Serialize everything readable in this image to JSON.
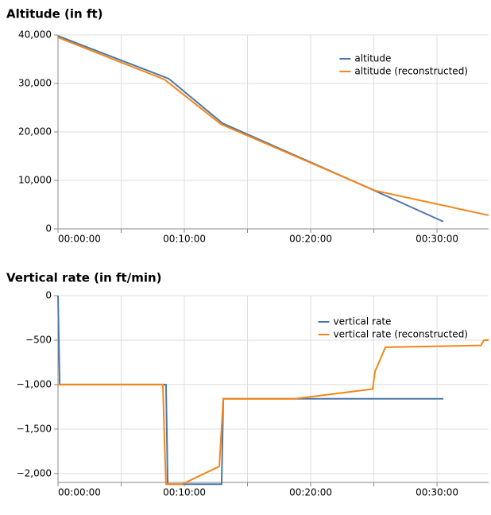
{
  "chart_data": [
    {
      "type": "line",
      "title": "Altitude (in ft)",
      "xlim": [
        0,
        2045
      ],
      "ylim": [
        0,
        40000
      ],
      "xticks": [
        {
          "value": 0,
          "label": "00:00:00"
        },
        {
          "value": 600,
          "label": "00:10:00"
        },
        {
          "value": 1200,
          "label": "00:20:00"
        },
        {
          "value": 1800,
          "label": "00:30:00"
        }
      ],
      "x_minor_ticks": [
        300,
        900,
        1500
      ],
      "yticks": [
        0,
        {
          "value": 10000,
          "label": "10,000"
        },
        {
          "value": 20000,
          "label": "20,000"
        },
        {
          "value": 30000,
          "label": "30,000"
        },
        {
          "value": 40000,
          "label": "40,000"
        }
      ],
      "grid": true,
      "legend": "top-right",
      "series": [
        {
          "name": "altitude",
          "color": "#4c78a8",
          "x": [
            0,
            525,
            781,
            1498,
            1830
          ],
          "values": [
            39800,
            31000,
            21800,
            8000,
            1500
          ]
        },
        {
          "name": "altitude (reconstructed)",
          "color": "#f58518",
          "x": [
            0,
            506,
            774,
            1506,
            2045
          ],
          "values": [
            39500,
            30800,
            21600,
            7900,
            2800
          ]
        }
      ]
    },
    {
      "type": "line",
      "title": "Vertical rate (in ft/min)",
      "xlim": [
        0,
        2045
      ],
      "ylim": [
        -2100,
        0
      ],
      "xticks": [
        {
          "value": 0,
          "label": "00:00:00"
        },
        {
          "value": 600,
          "label": "00:10:00"
        },
        {
          "value": 1200,
          "label": "00:20:00"
        },
        {
          "value": 1800,
          "label": "00:30:00"
        }
      ],
      "x_minor_ticks": [
        300,
        900,
        1500
      ],
      "yticks": [
        {
          "value": -2000,
          "label": "−2,000"
        },
        {
          "value": -1500,
          "label": "−1,500"
        },
        {
          "value": -1000,
          "label": "−1,000"
        },
        {
          "value": -500,
          "label": "−500"
        },
        0
      ],
      "grid": true,
      "legend": "top-right",
      "series": [
        {
          "name": "vertical rate",
          "color": "#4c78a8",
          "x": [
            0,
            8,
            513,
            521,
            777,
            785,
            1830
          ],
          "values": [
            0,
            -1000,
            -1000,
            -2120,
            -2120,
            -1160,
            -1160
          ]
        },
        {
          "name": "vertical rate (reconstructed)",
          "color": "#f58518",
          "x": [
            0,
            498,
            506,
            513,
            589,
            766,
            785,
            1121,
            1494,
            1506,
            1555,
            2008,
            2023,
            2045
          ],
          "values": [
            -1000,
            -1000,
            -1650,
            -2120,
            -2120,
            -1920,
            -1160,
            -1160,
            -1050,
            -850,
            -580,
            -560,
            -500,
            -500
          ]
        }
      ]
    }
  ]
}
